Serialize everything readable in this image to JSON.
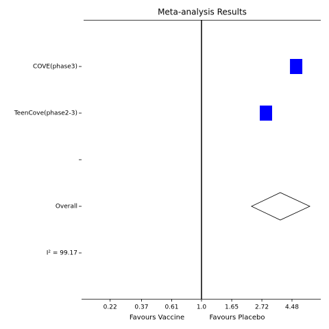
{
  "chart_data": {
    "type": "forest",
    "title": "Meta-analysis Results",
    "categories": [
      "COVE(phase3)",
      "TeenCove(phase2-3)",
      null,
      "Overall",
      "I² = 99.17"
    ],
    "values": [
      4.8,
      2.91,
      null,
      null,
      null
    ],
    "overall": {
      "value": 3.69,
      "lower": 2.29,
      "upper": 6.02
    },
    "color": "#0000ff",
    "xlabel_left": "Favours Vaccine",
    "xlabel_right": "Favours Placebo",
    "log_x": true,
    "xlim": [
      0.137,
      7.22
    ],
    "xticks": [
      0.22,
      0.37,
      0.61,
      {
        "value": 1,
        "label": "1.0"
      },
      1.65,
      2.72,
      4.48
    ],
    "null_line": 1
  }
}
